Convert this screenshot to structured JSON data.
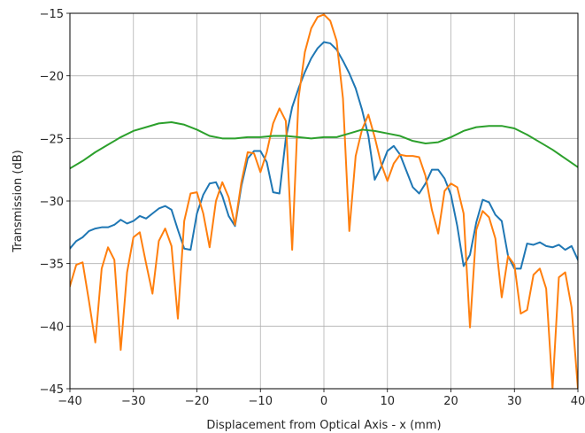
{
  "chart_data": {
    "type": "line",
    "title": "",
    "xlabel": "Displacement from Optical Axis - x (mm)",
    "ylabel": "Transmission (dB)",
    "xlim": [
      -40,
      40
    ],
    "ylim": [
      -45,
      -15
    ],
    "grid": true,
    "x_ticks": [
      -40,
      -30,
      -20,
      -10,
      0,
      10,
      20,
      30,
      40
    ],
    "y_ticks": [
      -45,
      -40,
      -35,
      -30,
      -25,
      -20,
      -15
    ],
    "x_tick_labels": [
      "−40",
      "−30",
      "−20",
      "−10",
      "0",
      "10",
      "20",
      "30",
      "40"
    ],
    "y_tick_labels": [
      "−45",
      "−40",
      "−35",
      "−30",
      "−25",
      "−20",
      "−15"
    ],
    "series": [
      {
        "color": "#1f77b4",
        "points": [
          [
            -40,
            -33.8
          ],
          [
            -39,
            -33.2
          ],
          [
            -38,
            -32.9
          ],
          [
            -37,
            -32.4
          ],
          [
            -36,
            -32.2
          ],
          [
            -35,
            -32.1
          ],
          [
            -34,
            -32.1
          ],
          [
            -33,
            -31.9
          ],
          [
            -32,
            -31.5
          ],
          [
            -31,
            -31.8
          ],
          [
            -30,
            -31.6
          ],
          [
            -29,
            -31.2
          ],
          [
            -28,
            -31.4
          ],
          [
            -27,
            -31.0
          ],
          [
            -26,
            -30.6
          ],
          [
            -25,
            -30.4
          ],
          [
            -24,
            -30.7
          ],
          [
            -23,
            -32.3
          ],
          [
            -22,
            -33.8
          ],
          [
            -21,
            -33.9
          ],
          [
            -20,
            -31.0
          ],
          [
            -19,
            -29.5
          ],
          [
            -18,
            -28.6
          ],
          [
            -17,
            -28.5
          ],
          [
            -16,
            -29.6
          ],
          [
            -15,
            -31.2
          ],
          [
            -14,
            -32.0
          ],
          [
            -13,
            -28.8
          ],
          [
            -12,
            -26.6
          ],
          [
            -11,
            -26.0
          ],
          [
            -10,
            -26.0
          ],
          [
            -9,
            -26.9
          ],
          [
            -8,
            -29.3
          ],
          [
            -7,
            -29.4
          ],
          [
            -6,
            -25.0
          ],
          [
            -5,
            -22.5
          ],
          [
            -4,
            -21.0
          ],
          [
            -3,
            -19.7
          ],
          [
            -2,
            -18.6
          ],
          [
            -1,
            -17.8
          ],
          [
            0,
            -17.3
          ],
          [
            1,
            -17.4
          ],
          [
            2,
            -17.9
          ],
          [
            3,
            -18.8
          ],
          [
            4,
            -19.8
          ],
          [
            5,
            -21.0
          ],
          [
            6,
            -22.7
          ],
          [
            7,
            -24.8
          ],
          [
            8,
            -28.3
          ],
          [
            9,
            -27.3
          ],
          [
            10,
            -26.0
          ],
          [
            11,
            -25.6
          ],
          [
            12,
            -26.3
          ],
          [
            13,
            -27.6
          ],
          [
            14,
            -28.9
          ],
          [
            15,
            -29.4
          ],
          [
            16,
            -28.6
          ],
          [
            17,
            -27.5
          ],
          [
            18,
            -27.5
          ],
          [
            19,
            -28.2
          ],
          [
            20,
            -29.5
          ],
          [
            21,
            -32.0
          ],
          [
            22,
            -35.2
          ],
          [
            23,
            -34.3
          ],
          [
            24,
            -31.7
          ],
          [
            25,
            -29.9
          ],
          [
            26,
            -30.1
          ],
          [
            27,
            -31.1
          ],
          [
            28,
            -31.6
          ],
          [
            29,
            -34.4
          ],
          [
            30,
            -35.4
          ],
          [
            31,
            -35.4
          ],
          [
            32,
            -33.4
          ],
          [
            33,
            -33.5
          ],
          [
            34,
            -33.3
          ],
          [
            35,
            -33.6
          ],
          [
            36,
            -33.7
          ],
          [
            37,
            -33.5
          ],
          [
            38,
            -33.9
          ],
          [
            39,
            -33.6
          ],
          [
            40,
            -34.7
          ]
        ]
      },
      {
        "color": "#ff7f0e",
        "points": [
          [
            -40,
            -36.8
          ],
          [
            -39,
            -35.1
          ],
          [
            -38,
            -34.9
          ],
          [
            -37,
            -38.0
          ],
          [
            -36,
            -41.3
          ],
          [
            -35,
            -35.4
          ],
          [
            -34,
            -33.7
          ],
          [
            -33,
            -34.7
          ],
          [
            -32,
            -41.9
          ],
          [
            -31,
            -35.7
          ],
          [
            -30,
            -32.9
          ],
          [
            -29,
            -32.5
          ],
          [
            -28,
            -35.0
          ],
          [
            -27,
            -37.4
          ],
          [
            -26,
            -33.2
          ],
          [
            -25,
            -32.2
          ],
          [
            -24,
            -33.6
          ],
          [
            -23,
            -39.4
          ],
          [
            -22,
            -31.6
          ],
          [
            -21,
            -29.4
          ],
          [
            -20,
            -29.3
          ],
          [
            -19,
            -31.0
          ],
          [
            -18,
            -33.7
          ],
          [
            -17,
            -30.0
          ],
          [
            -16,
            -28.5
          ],
          [
            -15,
            -29.7
          ],
          [
            -14,
            -31.9
          ],
          [
            -13,
            -28.5
          ],
          [
            -12,
            -26.1
          ],
          [
            -11,
            -26.2
          ],
          [
            -10,
            -27.7
          ],
          [
            -9,
            -26.1
          ],
          [
            -8,
            -23.8
          ],
          [
            -7,
            -22.6
          ],
          [
            -6,
            -23.6
          ],
          [
            -5,
            -33.9
          ],
          [
            -4,
            -21.8
          ],
          [
            -3,
            -18.1
          ],
          [
            -2,
            -16.2
          ],
          [
            -1,
            -15.3
          ],
          [
            0,
            -15.1
          ],
          [
            1,
            -15.6
          ],
          [
            2,
            -17.2
          ],
          [
            3,
            -21.8
          ],
          [
            4,
            -32.4
          ],
          [
            5,
            -26.4
          ],
          [
            6,
            -24.3
          ],
          [
            7,
            -23.1
          ],
          [
            8,
            -24.9
          ],
          [
            9,
            -27.0
          ],
          [
            10,
            -28.4
          ],
          [
            11,
            -27.0
          ],
          [
            12,
            -26.3
          ],
          [
            13,
            -26.4
          ],
          [
            14,
            -26.4
          ],
          [
            15,
            -26.5
          ],
          [
            16,
            -28.0
          ],
          [
            17,
            -30.7
          ],
          [
            18,
            -32.6
          ],
          [
            19,
            -29.2
          ],
          [
            20,
            -28.6
          ],
          [
            21,
            -28.9
          ],
          [
            22,
            -31.0
          ],
          [
            23,
            -40.1
          ],
          [
            24,
            -32.3
          ],
          [
            25,
            -30.8
          ],
          [
            26,
            -31.3
          ],
          [
            27,
            -33.0
          ],
          [
            28,
            -37.7
          ],
          [
            29,
            -34.4
          ],
          [
            30,
            -35.1
          ],
          [
            31,
            -39.0
          ],
          [
            32,
            -38.7
          ],
          [
            33,
            -35.9
          ],
          [
            34,
            -35.4
          ],
          [
            35,
            -37.0
          ],
          [
            36,
            -45.0
          ],
          [
            37,
            -36.1
          ],
          [
            38,
            -35.7
          ],
          [
            39,
            -38.5
          ],
          [
            40,
            -45.0
          ]
        ]
      },
      {
        "color": "#2ca02c",
        "points": [
          [
            -40,
            -27.4
          ],
          [
            -38,
            -26.8
          ],
          [
            -36,
            -26.1
          ],
          [
            -34,
            -25.5
          ],
          [
            -32,
            -24.9
          ],
          [
            -30,
            -24.4
          ],
          [
            -28,
            -24.1
          ],
          [
            -26,
            -23.8
          ],
          [
            -24,
            -23.7
          ],
          [
            -22,
            -23.9
          ],
          [
            -20,
            -24.3
          ],
          [
            -18,
            -24.8
          ],
          [
            -16,
            -25.0
          ],
          [
            -14,
            -25.0
          ],
          [
            -12,
            -24.9
          ],
          [
            -10,
            -24.9
          ],
          [
            -8,
            -24.8
          ],
          [
            -6,
            -24.8
          ],
          [
            -4,
            -24.9
          ],
          [
            -2,
            -25.0
          ],
          [
            0,
            -24.9
          ],
          [
            2,
            -24.9
          ],
          [
            4,
            -24.6
          ],
          [
            6,
            -24.3
          ],
          [
            8,
            -24.4
          ],
          [
            10,
            -24.6
          ],
          [
            12,
            -24.8
          ],
          [
            14,
            -25.2
          ],
          [
            16,
            -25.4
          ],
          [
            18,
            -25.3
          ],
          [
            20,
            -24.9
          ],
          [
            22,
            -24.4
          ],
          [
            24,
            -24.1
          ],
          [
            26,
            -24.0
          ],
          [
            28,
            -24.0
          ],
          [
            30,
            -24.2
          ],
          [
            32,
            -24.7
          ],
          [
            34,
            -25.3
          ],
          [
            36,
            -25.9
          ],
          [
            38,
            -26.6
          ],
          [
            40,
            -27.3
          ]
        ]
      }
    ]
  }
}
